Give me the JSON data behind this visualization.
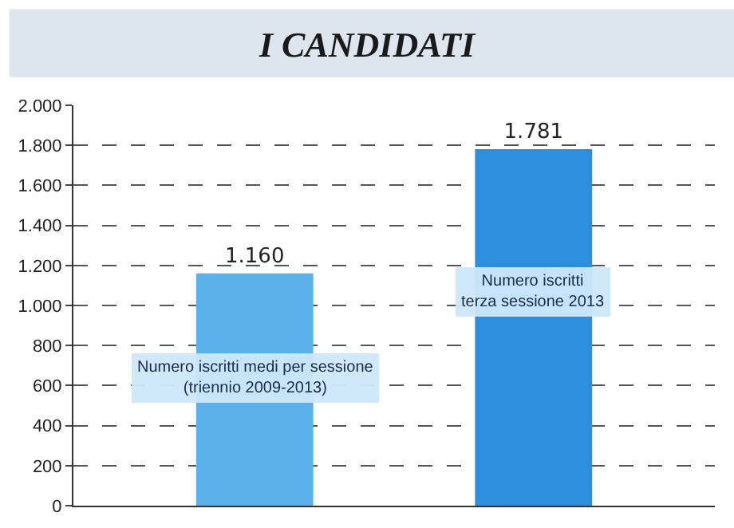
{
  "chart_data": {
    "type": "bar",
    "title": "I CANDIDATI",
    "categories": [
      null,
      null
    ],
    "values": [
      1160,
      1781
    ],
    "colors": [
      "#5bb2ea",
      "#2e8ede"
    ],
    "value_labels": [
      "1.160",
      "1.781"
    ],
    "annotations": [
      "Numero iscritti medi per sessione (triennio 2009-2013)",
      "Numero iscritti terza sessione 2013"
    ],
    "ylim": [
      0,
      2000
    ],
    "yticks": [
      {
        "value": 0,
        "label": "0"
      },
      {
        "value": 200,
        "label": "200"
      },
      {
        "value": 400,
        "label": "400"
      },
      {
        "value": 600,
        "label": "600"
      },
      {
        "value": 800,
        "label": "800"
      },
      {
        "value": 1000,
        "label": "1.000"
      },
      {
        "value": 1200,
        "label": "1.200"
      },
      {
        "value": 1400,
        "label": "1.400"
      },
      {
        "value": 1600,
        "label": "1.600"
      },
      {
        "value": 1800,
        "label": "1.800"
      },
      {
        "value": 2000,
        "label": "2.000"
      }
    ],
    "grid": "y",
    "line_style": "dashed"
  }
}
